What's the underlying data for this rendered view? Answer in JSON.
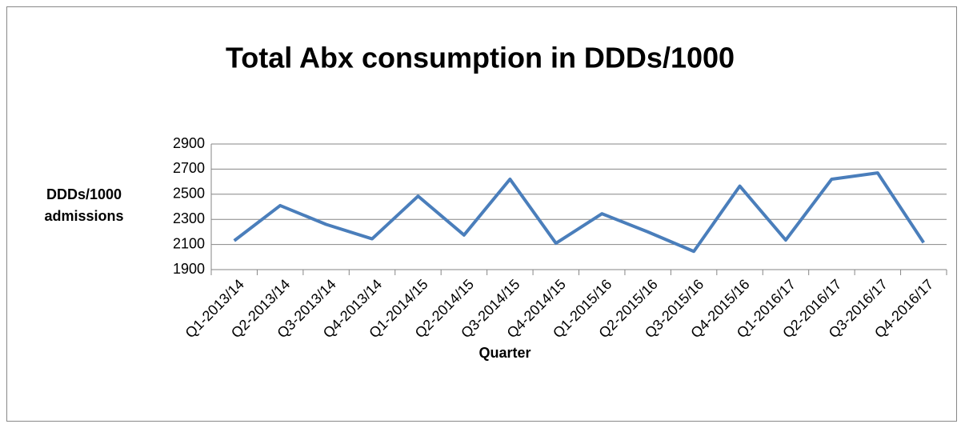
{
  "chart_data": {
    "type": "line",
    "title": "Total Abx consumption in DDDs/1000",
    "xlabel": "Quarter",
    "ylabel": "DDDs/1000 admissions",
    "categories": [
      "Q1-2013/14",
      "Q2-2013/14",
      "Q3-2013/14",
      "Q4-2013/14",
      "Q1-2014/15",
      "Q2-2014/15",
      "Q3-2014/15",
      "Q4-2014/15",
      "Q1-2015/16",
      "Q2-2015/16",
      "Q3-2015/16",
      "Q4-2015/16",
      "Q1-2016/17",
      "Q2-2016/17",
      "Q3-2016/17",
      "Q4-2016/17"
    ],
    "series": [
      {
        "name": "Total Abx consumption in DDDs/1000",
        "color": "#4a7ebb",
        "values": [
          2130,
          2410,
          2260,
          2145,
          2485,
          2175,
          2620,
          2110,
          2345,
          2200,
          2045,
          2565,
          2135,
          2620,
          2670,
          2115
        ]
      }
    ],
    "ylim": [
      1900,
      2900
    ],
    "yticks": [
      1900,
      2100,
      2300,
      2500,
      2700,
      2900
    ],
    "grid": true,
    "legend": false
  }
}
